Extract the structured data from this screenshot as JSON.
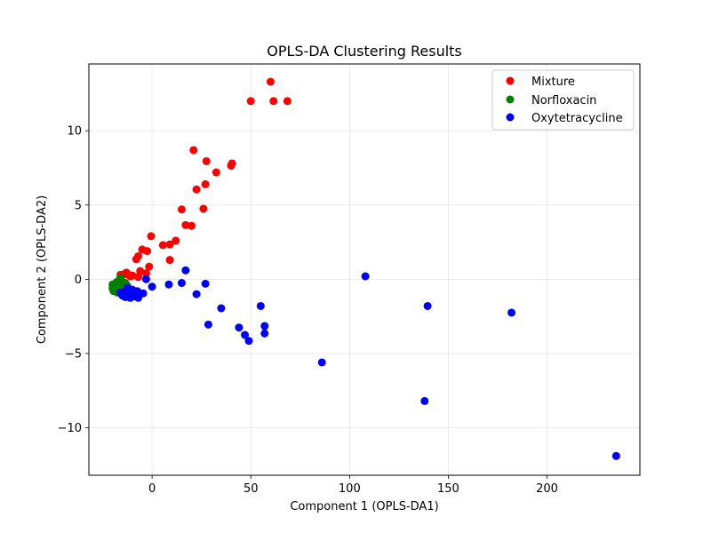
{
  "chart_data": {
    "type": "scatter",
    "title": "OPLS-DA Clustering Results",
    "xlabel": "Component 1 (OPLS-DA1)",
    "ylabel": "Component 2 (OPLS-DA2)",
    "xlim": [
      -32,
      247
    ],
    "ylim": [
      -13.2,
      14.5
    ],
    "xticks": [
      0,
      50,
      100,
      150,
      200
    ],
    "yticks": [
      -10,
      -5,
      0,
      5,
      10
    ],
    "xtick_labels": [
      "0",
      "50",
      "100",
      "150",
      "200"
    ],
    "ytick_labels": [
      "−10",
      "−5",
      "0",
      "5",
      "10"
    ],
    "grid": true,
    "legend_position": "top-right",
    "series": [
      {
        "name": "Mixture",
        "color": "#ff0000",
        "points": [
          [
            60,
            13.3
          ],
          [
            50,
            12.0
          ],
          [
            61.5,
            12.0
          ],
          [
            68.5,
            12.0
          ],
          [
            21,
            8.7
          ],
          [
            27.5,
            7.95
          ],
          [
            40.5,
            7.8
          ],
          [
            40,
            7.65
          ],
          [
            32.5,
            7.2
          ],
          [
            27,
            6.4
          ],
          [
            22.5,
            6.05
          ],
          [
            15,
            4.7
          ],
          [
            26,
            4.75
          ],
          [
            17,
            3.65
          ],
          [
            20,
            3.6
          ],
          [
            -0.5,
            2.9
          ],
          [
            12,
            2.6
          ],
          [
            9,
            2.35
          ],
          [
            5.5,
            2.3
          ],
          [
            -5,
            2.0
          ],
          [
            -2.5,
            1.9
          ],
          [
            -7,
            1.55
          ],
          [
            -8,
            1.35
          ],
          [
            9,
            1.3
          ],
          [
            -1.5,
            0.85
          ],
          [
            -6,
            0.55
          ],
          [
            -3,
            0.4
          ],
          [
            -14,
            0.35
          ],
          [
            -12,
            0.3
          ],
          [
            -10,
            0.25
          ],
          [
            -7,
            0.15
          ],
          [
            -13,
            0.45
          ],
          [
            -16,
            0.3
          ],
          [
            -11,
            0.2
          ]
        ]
      },
      {
        "name": "Norfloxacin",
        "color": "#008000",
        "points": [
          [
            -16,
            0.1
          ],
          [
            -17,
            -0.1
          ],
          [
            -18,
            -0.2
          ],
          [
            -14.5,
            -0.2
          ],
          [
            -15,
            -0.3
          ],
          [
            -17,
            -0.4
          ],
          [
            -19,
            -0.5
          ],
          [
            -13,
            -0.5
          ],
          [
            -20,
            -0.6
          ],
          [
            -16,
            -0.6
          ],
          [
            -18,
            -0.7
          ],
          [
            -14,
            -0.75
          ],
          [
            -19.5,
            -0.8
          ],
          [
            -17.5,
            -0.9
          ],
          [
            -15.5,
            -0.35
          ],
          [
            -12.5,
            -0.45
          ],
          [
            -18.5,
            -0.3
          ],
          [
            -16.5,
            -0.8
          ],
          [
            -20,
            -0.35
          ],
          [
            -13.5,
            -0.25
          ]
        ]
      },
      {
        "name": "Oxytetracycline",
        "color": "#0000ff",
        "points": [
          [
            235,
            -11.9
          ],
          [
            182,
            -2.25
          ],
          [
            139.5,
            -1.8
          ],
          [
            138,
            -8.2
          ],
          [
            108,
            0.2
          ],
          [
            86,
            -5.6
          ],
          [
            57,
            -3.15
          ],
          [
            57,
            -3.65
          ],
          [
            55,
            -1.8
          ],
          [
            49,
            -4.15
          ],
          [
            47,
            -3.75
          ],
          [
            44,
            -3.25
          ],
          [
            35,
            -1.95
          ],
          [
            28.5,
            -3.05
          ],
          [
            27,
            -0.3
          ],
          [
            22.5,
            -1.0
          ],
          [
            17,
            0.6
          ],
          [
            15,
            -0.25
          ],
          [
            8.5,
            -0.35
          ],
          [
            0,
            -0.5
          ],
          [
            -3,
            0.0
          ],
          [
            -4.5,
            -0.95
          ],
          [
            -7,
            -1.25
          ],
          [
            -7.5,
            -0.8
          ],
          [
            -9,
            -1.15
          ],
          [
            -10,
            -0.7
          ],
          [
            -11,
            -1.25
          ],
          [
            -12,
            -0.95
          ],
          [
            -12.5,
            -0.6
          ],
          [
            -13.5,
            -1.2
          ],
          [
            -14,
            -0.85
          ],
          [
            -15,
            -1.1
          ],
          [
            -16,
            -0.9
          ],
          [
            -8.5,
            -1.05
          ],
          [
            -10.5,
            -0.95
          ],
          [
            -13,
            -1.05
          ]
        ]
      }
    ]
  }
}
